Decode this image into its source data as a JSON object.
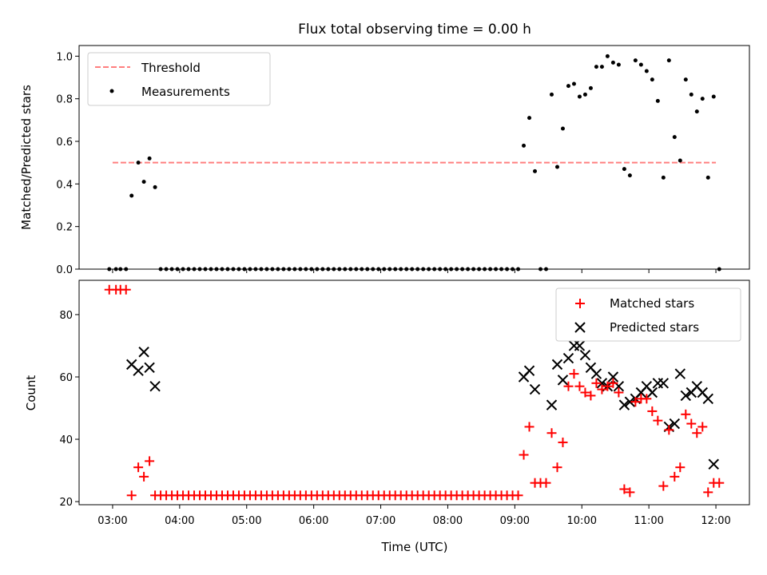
{
  "title": "Flux total observing time = 0.00 h",
  "chart_data": [
    {
      "type": "scatter",
      "ylabel": "Matched/Predicted stars",
      "ylim": [
        0,
        1.05
      ],
      "yticks": [
        0.0,
        0.2,
        0.4,
        0.6,
        0.8,
        1.0
      ],
      "ytick_labels": [
        "0.0",
        "0.2",
        "0.4",
        "0.6",
        "0.8",
        "1.0"
      ],
      "legend_position": "top-left",
      "threshold": {
        "name": "Threshold",
        "y": 0.5,
        "x_start": "03:00",
        "x_end": "12:00",
        "color": "#ff7f7f",
        "style": "dashed"
      },
      "series": [
        {
          "name": "Measurements",
          "color": "#000000",
          "marker": "dot",
          "points": [
            [
              "02:57",
              0
            ],
            [
              "03:03",
              0
            ],
            [
              "03:07",
              0
            ],
            [
              "03:12",
              0
            ],
            [
              "03:17",
              0.345
            ],
            [
              "03:23",
              0.5
            ],
            [
              "03:28",
              0.41
            ],
            [
              "03:33",
              0.52
            ],
            [
              "03:38",
              0.385
            ],
            [
              "03:43",
              0
            ],
            [
              "03:48",
              0
            ],
            [
              "03:53",
              0
            ],
            [
              "03:58",
              0
            ],
            [
              "04:03",
              0
            ],
            [
              "04:08",
              0
            ],
            [
              "04:13",
              0
            ],
            [
              "04:18",
              0
            ],
            [
              "04:23",
              0
            ],
            [
              "04:28",
              0
            ],
            [
              "04:33",
              0
            ],
            [
              "04:38",
              0
            ],
            [
              "04:43",
              0
            ],
            [
              "04:48",
              0
            ],
            [
              "04:53",
              0
            ],
            [
              "04:58",
              0
            ],
            [
              "05:03",
              0
            ],
            [
              "05:08",
              0
            ],
            [
              "05:13",
              0
            ],
            [
              "05:18",
              0
            ],
            [
              "05:23",
              0
            ],
            [
              "05:28",
              0
            ],
            [
              "05:33",
              0
            ],
            [
              "05:38",
              0
            ],
            [
              "05:43",
              0
            ],
            [
              "05:48",
              0
            ],
            [
              "05:53",
              0
            ],
            [
              "05:58",
              0
            ],
            [
              "06:03",
              0
            ],
            [
              "06:08",
              0
            ],
            [
              "06:13",
              0
            ],
            [
              "06:18",
              0
            ],
            [
              "06:23",
              0
            ],
            [
              "06:28",
              0
            ],
            [
              "06:33",
              0
            ],
            [
              "06:38",
              0
            ],
            [
              "06:43",
              0
            ],
            [
              "06:48",
              0
            ],
            [
              "06:53",
              0
            ],
            [
              "06:58",
              0
            ],
            [
              "07:03",
              0
            ],
            [
              "07:08",
              0
            ],
            [
              "07:13",
              0
            ],
            [
              "07:18",
              0
            ],
            [
              "07:23",
              0
            ],
            [
              "07:28",
              0
            ],
            [
              "07:33",
              0
            ],
            [
              "07:38",
              0
            ],
            [
              "07:43",
              0
            ],
            [
              "07:48",
              0
            ],
            [
              "07:53",
              0
            ],
            [
              "07:58",
              0
            ],
            [
              "08:03",
              0
            ],
            [
              "08:08",
              0
            ],
            [
              "08:13",
              0
            ],
            [
              "08:18",
              0
            ],
            [
              "08:23",
              0
            ],
            [
              "08:28",
              0
            ],
            [
              "08:33",
              0
            ],
            [
              "08:38",
              0
            ],
            [
              "08:43",
              0
            ],
            [
              "08:48",
              0
            ],
            [
              "08:53",
              0
            ],
            [
              "08:58",
              0
            ],
            [
              "09:03",
              0
            ],
            [
              "09:08",
              0.58
            ],
            [
              "09:13",
              0.71
            ],
            [
              "09:18",
              0.46
            ],
            [
              "09:23",
              0
            ],
            [
              "09:28",
              0
            ],
            [
              "09:33",
              0.82
            ],
            [
              "09:38",
              0.48
            ],
            [
              "09:43",
              0.66
            ],
            [
              "09:48",
              0.86
            ],
            [
              "09:53",
              0.87
            ],
            [
              "09:58",
              0.81
            ],
            [
              "10:03",
              0.82
            ],
            [
              "10:08",
              0.85
            ],
            [
              "10:13",
              0.95
            ],
            [
              "10:18",
              0.95
            ],
            [
              "10:23",
              1.0
            ],
            [
              "10:28",
              0.97
            ],
            [
              "10:33",
              0.96
            ],
            [
              "10:38",
              0.47
            ],
            [
              "10:43",
              0.44
            ],
            [
              "10:48",
              0.98
            ],
            [
              "10:53",
              0.96
            ],
            [
              "10:58",
              0.93
            ],
            [
              "11:03",
              0.89
            ],
            [
              "11:08",
              0.79
            ],
            [
              "11:13",
              0.43
            ],
            [
              "11:18",
              0.98
            ],
            [
              "11:23",
              0.62
            ],
            [
              "11:28",
              0.51
            ],
            [
              "11:33",
              0.89
            ],
            [
              "11:38",
              0.82
            ],
            [
              "11:43",
              0.74
            ],
            [
              "11:48",
              0.8
            ],
            [
              "11:53",
              0.43
            ],
            [
              "11:58",
              0.81
            ],
            [
              "12:03",
              0
            ]
          ]
        }
      ]
    },
    {
      "type": "scatter",
      "xlabel": "Time (UTC)",
      "ylabel": "Count",
      "ylim": [
        19,
        91
      ],
      "yticks": [
        20,
        40,
        60,
        80
      ],
      "ytick_labels": [
        "20",
        "40",
        "60",
        "80"
      ],
      "xticks": [
        "03:00",
        "04:00",
        "05:00",
        "06:00",
        "07:00",
        "08:00",
        "09:00",
        "10:00",
        "11:00",
        "12:00"
      ],
      "xlim": [
        "02:30",
        "12:30"
      ],
      "legend_position": "top-right",
      "series": [
        {
          "name": "Matched stars",
          "color": "#ff0000",
          "marker": "plus",
          "points": [
            [
              "02:57",
              88
            ],
            [
              "03:03",
              88
            ],
            [
              "03:07",
              88
            ],
            [
              "03:12",
              88
            ],
            [
              "03:17",
              22
            ],
            [
              "03:23",
              31
            ],
            [
              "03:28",
              28
            ],
            [
              "03:33",
              33
            ],
            [
              "03:38",
              22
            ],
            [
              "03:43",
              22
            ],
            [
              "03:48",
              22
            ],
            [
              "03:53",
              22
            ],
            [
              "03:58",
              22
            ],
            [
              "04:03",
              22
            ],
            [
              "04:08",
              22
            ],
            [
              "04:13",
              22
            ],
            [
              "04:18",
              22
            ],
            [
              "04:23",
              22
            ],
            [
              "04:28",
              22
            ],
            [
              "04:33",
              22
            ],
            [
              "04:38",
              22
            ],
            [
              "04:43",
              22
            ],
            [
              "04:48",
              22
            ],
            [
              "04:53",
              22
            ],
            [
              "04:58",
              22
            ],
            [
              "05:03",
              22
            ],
            [
              "05:08",
              22
            ],
            [
              "05:13",
              22
            ],
            [
              "05:18",
              22
            ],
            [
              "05:23",
              22
            ],
            [
              "05:28",
              22
            ],
            [
              "05:33",
              22
            ],
            [
              "05:38",
              22
            ],
            [
              "05:43",
              22
            ],
            [
              "05:48",
              22
            ],
            [
              "05:53",
              22
            ],
            [
              "05:58",
              22
            ],
            [
              "06:03",
              22
            ],
            [
              "06:08",
              22
            ],
            [
              "06:13",
              22
            ],
            [
              "06:18",
              22
            ],
            [
              "06:23",
              22
            ],
            [
              "06:28",
              22
            ],
            [
              "06:33",
              22
            ],
            [
              "06:38",
              22
            ],
            [
              "06:43",
              22
            ],
            [
              "06:48",
              22
            ],
            [
              "06:53",
              22
            ],
            [
              "06:58",
              22
            ],
            [
              "07:03",
              22
            ],
            [
              "07:08",
              22
            ],
            [
              "07:13",
              22
            ],
            [
              "07:18",
              22
            ],
            [
              "07:23",
              22
            ],
            [
              "07:28",
              22
            ],
            [
              "07:33",
              22
            ],
            [
              "07:38",
              22
            ],
            [
              "07:43",
              22
            ],
            [
              "07:48",
              22
            ],
            [
              "07:53",
              22
            ],
            [
              "07:58",
              22
            ],
            [
              "08:03",
              22
            ],
            [
              "08:08",
              22
            ],
            [
              "08:13",
              22
            ],
            [
              "08:18",
              22
            ],
            [
              "08:23",
              22
            ],
            [
              "08:28",
              22
            ],
            [
              "08:33",
              22
            ],
            [
              "08:38",
              22
            ],
            [
              "08:43",
              22
            ],
            [
              "08:48",
              22
            ],
            [
              "08:53",
              22
            ],
            [
              "08:58",
              22
            ],
            [
              "09:03",
              22
            ],
            [
              "09:08",
              35
            ],
            [
              "09:13",
              44
            ],
            [
              "09:18",
              26
            ],
            [
              "09:23",
              26
            ],
            [
              "09:28",
              26
            ],
            [
              "09:33",
              42
            ],
            [
              "09:38",
              31
            ],
            [
              "09:43",
              39
            ],
            [
              "09:48",
              57
            ],
            [
              "09:53",
              61
            ],
            [
              "09:58",
              57
            ],
            [
              "10:03",
              55
            ],
            [
              "10:08",
              54
            ],
            [
              "10:13",
              58
            ],
            [
              "10:18",
              56
            ],
            [
              "10:23",
              57
            ],
            [
              "10:28",
              58
            ],
            [
              "10:33",
              55
            ],
            [
              "10:38",
              24
            ],
            [
              "10:43",
              23
            ],
            [
              "10:48",
              52
            ],
            [
              "10:53",
              53
            ],
            [
              "10:58",
              53
            ],
            [
              "11:03",
              49
            ],
            [
              "11:08",
              46
            ],
            [
              "11:13",
              25
            ],
            [
              "11:18",
              43
            ],
            [
              "11:23",
              28
            ],
            [
              "11:28",
              31
            ],
            [
              "11:33",
              48
            ],
            [
              "11:38",
              45
            ],
            [
              "11:43",
              42
            ],
            [
              "11:48",
              44
            ],
            [
              "11:53",
              23
            ],
            [
              "11:58",
              26
            ],
            [
              "12:03",
              26
            ]
          ]
        },
        {
          "name": "Predicted stars",
          "color": "#000000",
          "marker": "x",
          "points": [
            [
              "03:17",
              64
            ],
            [
              "03:23",
              62
            ],
            [
              "03:28",
              68
            ],
            [
              "03:33",
              63
            ],
            [
              "03:38",
              57
            ],
            [
              "09:08",
              60
            ],
            [
              "09:13",
              62
            ],
            [
              "09:18",
              56
            ],
            [
              "09:33",
              51
            ],
            [
              "09:38",
              64
            ],
            [
              "09:43",
              59
            ],
            [
              "09:48",
              66
            ],
            [
              "09:53",
              70
            ],
            [
              "09:58",
              70
            ],
            [
              "10:03",
              67
            ],
            [
              "10:08",
              63
            ],
            [
              "10:13",
              61
            ],
            [
              "10:18",
              58
            ],
            [
              "10:23",
              57
            ],
            [
              "10:28",
              60
            ],
            [
              "10:33",
              57
            ],
            [
              "10:38",
              51
            ],
            [
              "10:43",
              52
            ],
            [
              "10:48",
              53
            ],
            [
              "10:53",
              55
            ],
            [
              "10:58",
              57
            ],
            [
              "11:03",
              55
            ],
            [
              "11:08",
              58
            ],
            [
              "11:13",
              58
            ],
            [
              "11:18",
              44
            ],
            [
              "11:23",
              45
            ],
            [
              "11:28",
              61
            ],
            [
              "11:33",
              54
            ],
            [
              "11:38",
              55
            ],
            [
              "11:43",
              57
            ],
            [
              "11:48",
              55
            ],
            [
              "11:53",
              53
            ],
            [
              "11:58",
              32
            ]
          ]
        }
      ]
    }
  ]
}
